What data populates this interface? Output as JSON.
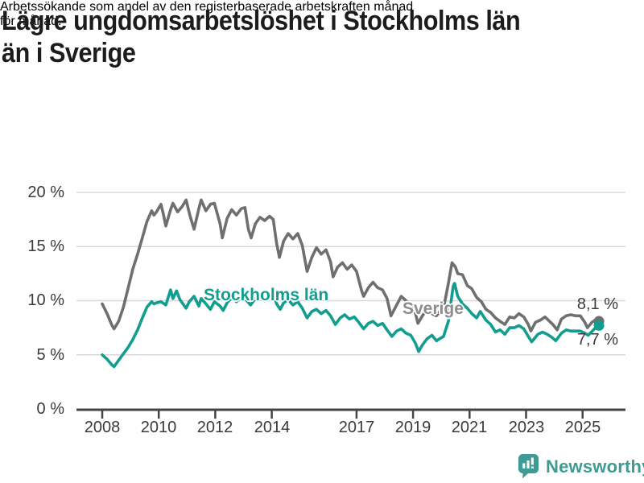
{
  "header": {
    "title": "Lägre ungdomsarbetslöshet i Stockholms län än i Sverige",
    "title_lines": [
      "Lägre ungdomsarbetslöshet i Stockholms län",
      "än i Sverige"
    ],
    "subtitle": "Arbetssökande som andel av den registerbaserade arbetskraften månad för månad.",
    "subtitle_lines": [
      "Arbetssökande som andel av den registerbaserade arbetskraften månad",
      "för månad."
    ]
  },
  "colors": {
    "sverige_line": "#6f6f6f",
    "stockholm_line": "#119e90",
    "sverige_label": "#8c8c8c",
    "grid": "#d8d8d8",
    "axis_line": "#454545",
    "axis_text": "#3a3a3a",
    "logo_teal": "#3f9a94"
  },
  "chart_data": {
    "type": "line",
    "title": "Lägre ungdomsarbetslöshet i Stockholms län än i Sverige",
    "subtitle": "Arbetssökande som andel av den registerbaserade arbetskraften månad för månad.",
    "legend_position": "inline-labels",
    "grid": true,
    "x_axis": {
      "tick_labels": [
        "2008",
        "2010",
        "2012",
        "2014",
        "2017",
        "2019",
        "2021",
        "2023",
        "2025"
      ],
      "tick_values": [
        2008,
        2010,
        2012,
        2014,
        2017,
        2019,
        2021,
        2023,
        2025
      ],
      "range": [
        2007.1,
        2026.5
      ]
    },
    "y_axis": {
      "unit": "%",
      "tick_labels": [
        "20 %",
        "15 %",
        "10 %",
        "5 %",
        "0 %"
      ],
      "tick_values": [
        20,
        15,
        10,
        5,
        0
      ],
      "range": [
        0,
        20.5
      ]
    },
    "series": [
      {
        "name": "Sverige",
        "color": "#6f6f6f",
        "end_label": "8,1 %",
        "end_value": 8.1,
        "points": [
          [
            2008.0,
            9.7
          ],
          [
            2008.17,
            8.8
          ],
          [
            2008.33,
            7.8
          ],
          [
            2008.42,
            7.4
          ],
          [
            2008.58,
            8.1
          ],
          [
            2008.75,
            9.4
          ],
          [
            2008.92,
            11.2
          ],
          [
            2009.08,
            12.9
          ],
          [
            2009.25,
            14.3
          ],
          [
            2009.42,
            15.8
          ],
          [
            2009.58,
            17.3
          ],
          [
            2009.75,
            18.3
          ],
          [
            2009.83,
            17.9
          ],
          [
            2009.92,
            18.2
          ],
          [
            2010.08,
            18.9
          ],
          [
            2010.17,
            17.9
          ],
          [
            2010.25,
            16.9
          ],
          [
            2010.42,
            18.4
          ],
          [
            2010.5,
            19.0
          ],
          [
            2010.67,
            18.2
          ],
          [
            2010.83,
            18.7
          ],
          [
            2010.97,
            19.3
          ],
          [
            2011.1,
            17.9
          ],
          [
            2011.25,
            16.6
          ],
          [
            2011.42,
            18.5
          ],
          [
            2011.5,
            19.3
          ],
          [
            2011.67,
            18.3
          ],
          [
            2011.83,
            18.9
          ],
          [
            2011.97,
            19.0
          ],
          [
            2012.17,
            17.1
          ],
          [
            2012.25,
            15.8
          ],
          [
            2012.42,
            17.6
          ],
          [
            2012.58,
            18.4
          ],
          [
            2012.75,
            17.9
          ],
          [
            2012.92,
            18.5
          ],
          [
            2013.05,
            18.6
          ],
          [
            2013.17,
            16.6
          ],
          [
            2013.27,
            15.8
          ],
          [
            2013.42,
            17.1
          ],
          [
            2013.58,
            17.7
          ],
          [
            2013.75,
            17.4
          ],
          [
            2013.92,
            17.8
          ],
          [
            2014.05,
            17.5
          ],
          [
            2014.17,
            15.3
          ],
          [
            2014.27,
            14.0
          ],
          [
            2014.42,
            15.5
          ],
          [
            2014.58,
            16.2
          ],
          [
            2014.75,
            15.7
          ],
          [
            2014.92,
            16.2
          ],
          [
            2015.08,
            15.1
          ],
          [
            2015.25,
            12.7
          ],
          [
            2015.42,
            14.0
          ],
          [
            2015.58,
            14.9
          ],
          [
            2015.75,
            14.3
          ],
          [
            2015.92,
            14.7
          ],
          [
            2016.08,
            13.6
          ],
          [
            2016.17,
            12.2
          ],
          [
            2016.33,
            13.1
          ],
          [
            2016.5,
            13.5
          ],
          [
            2016.67,
            12.9
          ],
          [
            2016.83,
            13.3
          ],
          [
            2017.0,
            12.7
          ],
          [
            2017.17,
            11.0
          ],
          [
            2017.25,
            10.4
          ],
          [
            2017.42,
            11.2
          ],
          [
            2017.58,
            11.7
          ],
          [
            2017.75,
            11.2
          ],
          [
            2017.92,
            11.0
          ],
          [
            2018.08,
            10.2
          ],
          [
            2018.22,
            8.6
          ],
          [
            2018.42,
            9.6
          ],
          [
            2018.58,
            10.4
          ],
          [
            2018.75,
            10.0
          ],
          [
            2018.92,
            9.7
          ],
          [
            2019.08,
            8.9
          ],
          [
            2019.17,
            7.9
          ],
          [
            2019.33,
            8.6
          ],
          [
            2019.5,
            9.2
          ],
          [
            2019.67,
            8.8
          ],
          [
            2019.83,
            8.6
          ],
          [
            2019.95,
            9.0
          ],
          [
            2020.08,
            9.3
          ],
          [
            2020.25,
            11.6
          ],
          [
            2020.38,
            13.5
          ],
          [
            2020.5,
            13.1
          ],
          [
            2020.58,
            12.5
          ],
          [
            2020.75,
            12.4
          ],
          [
            2020.92,
            11.4
          ],
          [
            2021.08,
            11.1
          ],
          [
            2021.25,
            10.3
          ],
          [
            2021.42,
            9.9
          ],
          [
            2021.58,
            9.2
          ],
          [
            2021.75,
            8.9
          ],
          [
            2021.92,
            8.4
          ],
          [
            2022.08,
            8.1
          ],
          [
            2022.25,
            7.8
          ],
          [
            2022.42,
            8.5
          ],
          [
            2022.58,
            8.4
          ],
          [
            2022.75,
            8.8
          ],
          [
            2022.92,
            8.5
          ],
          [
            2023.08,
            7.8
          ],
          [
            2023.17,
            7.2
          ],
          [
            2023.33,
            8.0
          ],
          [
            2023.5,
            8.2
          ],
          [
            2023.67,
            8.5
          ],
          [
            2023.83,
            8.1
          ],
          [
            2023.95,
            7.8
          ],
          [
            2024.1,
            7.3
          ],
          [
            2024.25,
            8.3
          ],
          [
            2024.42,
            8.6
          ],
          [
            2024.58,
            8.7
          ],
          [
            2024.75,
            8.6
          ],
          [
            2024.92,
            8.6
          ],
          [
            2025.08,
            8.0
          ],
          [
            2025.17,
            7.5
          ],
          [
            2025.33,
            8.0
          ],
          [
            2025.5,
            8.3
          ],
          [
            2025.58,
            8.1
          ]
        ]
      },
      {
        "name": "Stockholms län",
        "color": "#119e90",
        "end_label": "7,7 %",
        "end_value": 7.7,
        "points": [
          [
            2008.0,
            5.0
          ],
          [
            2008.17,
            4.6
          ],
          [
            2008.33,
            4.1
          ],
          [
            2008.42,
            3.9
          ],
          [
            2008.58,
            4.5
          ],
          [
            2008.75,
            5.1
          ],
          [
            2008.92,
            5.7
          ],
          [
            2009.08,
            6.4
          ],
          [
            2009.25,
            7.3
          ],
          [
            2009.42,
            8.4
          ],
          [
            2009.58,
            9.4
          ],
          [
            2009.75,
            9.9
          ],
          [
            2009.83,
            9.7
          ],
          [
            2009.92,
            9.8
          ],
          [
            2010.08,
            9.9
          ],
          [
            2010.25,
            9.6
          ],
          [
            2010.42,
            11.0
          ],
          [
            2010.5,
            10.2
          ],
          [
            2010.63,
            10.9
          ],
          [
            2010.75,
            10.1
          ],
          [
            2010.97,
            9.3
          ],
          [
            2011.08,
            9.9
          ],
          [
            2011.25,
            10.4
          ],
          [
            2011.42,
            9.5
          ],
          [
            2011.5,
            10.2
          ],
          [
            2011.67,
            9.7
          ],
          [
            2011.83,
            9.2
          ],
          [
            2011.97,
            9.9
          ],
          [
            2012.17,
            9.5
          ],
          [
            2012.28,
            9.1
          ],
          [
            2012.42,
            9.8
          ],
          [
            2012.58,
            10.3
          ],
          [
            2012.75,
            9.9
          ],
          [
            2012.92,
            10.4
          ],
          [
            2013.08,
            10.1
          ],
          [
            2013.25,
            9.6
          ],
          [
            2013.42,
            10.2
          ],
          [
            2013.58,
            10.5
          ],
          [
            2013.75,
            10.0
          ],
          [
            2013.92,
            10.6
          ],
          [
            2014.05,
            10.7
          ],
          [
            2014.17,
            9.7
          ],
          [
            2014.3,
            9.2
          ],
          [
            2014.42,
            9.8
          ],
          [
            2014.58,
            10.1
          ],
          [
            2014.75,
            9.6
          ],
          [
            2014.92,
            9.9
          ],
          [
            2015.08,
            9.3
          ],
          [
            2015.25,
            8.4
          ],
          [
            2015.42,
            9.0
          ],
          [
            2015.58,
            9.2
          ],
          [
            2015.75,
            8.8
          ],
          [
            2015.92,
            9.1
          ],
          [
            2016.08,
            8.6
          ],
          [
            2016.25,
            7.8
          ],
          [
            2016.42,
            8.4
          ],
          [
            2016.58,
            8.7
          ],
          [
            2016.75,
            8.3
          ],
          [
            2016.92,
            8.5
          ],
          [
            2017.08,
            8.0
          ],
          [
            2017.25,
            7.4
          ],
          [
            2017.42,
            7.9
          ],
          [
            2017.58,
            8.1
          ],
          [
            2017.75,
            7.7
          ],
          [
            2017.92,
            7.9
          ],
          [
            2018.08,
            7.3
          ],
          [
            2018.25,
            6.7
          ],
          [
            2018.42,
            7.2
          ],
          [
            2018.58,
            7.4
          ],
          [
            2018.75,
            7.0
          ],
          [
            2018.92,
            6.8
          ],
          [
            2019.08,
            6.1
          ],
          [
            2019.2,
            5.3
          ],
          [
            2019.33,
            5.9
          ],
          [
            2019.5,
            6.5
          ],
          [
            2019.67,
            6.8
          ],
          [
            2019.83,
            6.3
          ],
          [
            2019.95,
            6.5
          ],
          [
            2020.08,
            6.7
          ],
          [
            2020.25,
            8.1
          ],
          [
            2020.42,
            11.3
          ],
          [
            2020.47,
            11.6
          ],
          [
            2020.58,
            10.4
          ],
          [
            2020.75,
            9.7
          ],
          [
            2020.92,
            9.3
          ],
          [
            2021.08,
            8.8
          ],
          [
            2021.25,
            8.4
          ],
          [
            2021.38,
            9.0
          ],
          [
            2021.58,
            8.2
          ],
          [
            2021.75,
            7.8
          ],
          [
            2021.92,
            7.1
          ],
          [
            2022.08,
            7.3
          ],
          [
            2022.25,
            6.9
          ],
          [
            2022.42,
            7.5
          ],
          [
            2022.58,
            7.5
          ],
          [
            2022.75,
            7.7
          ],
          [
            2022.92,
            7.4
          ],
          [
            2023.08,
            6.7
          ],
          [
            2023.2,
            6.2
          ],
          [
            2023.42,
            6.9
          ],
          [
            2023.58,
            7.1
          ],
          [
            2023.75,
            6.9
          ],
          [
            2023.92,
            6.6
          ],
          [
            2024.05,
            6.3
          ],
          [
            2024.25,
            7.0
          ],
          [
            2024.42,
            7.3
          ],
          [
            2024.58,
            7.2
          ],
          [
            2024.75,
            7.2
          ],
          [
            2024.92,
            7.2
          ],
          [
            2025.08,
            7.0
          ],
          [
            2025.2,
            6.8
          ],
          [
            2025.42,
            7.4
          ],
          [
            2025.58,
            7.7
          ]
        ]
      }
    ]
  },
  "footer": {
    "brand": "Newsworthy"
  }
}
